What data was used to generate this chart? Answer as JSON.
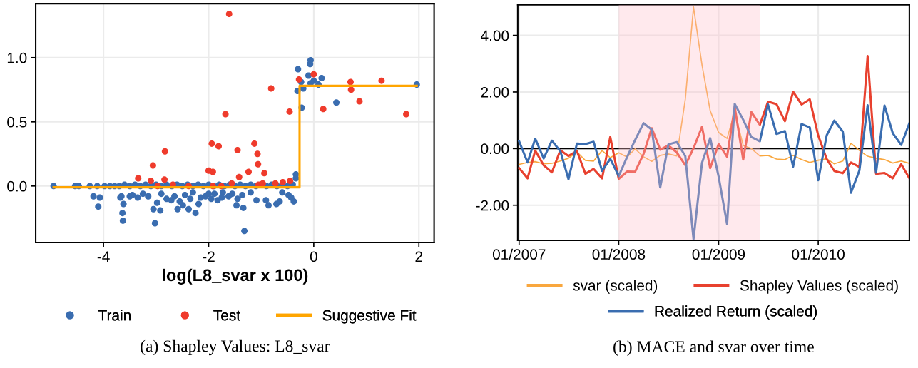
{
  "chart_data": [
    {
      "type": "scatter",
      "title": "(a) Shapley Values: L8_svar",
      "xlabel": "log(L8_svar x 100)",
      "xlim": [
        -5.29,
        2.29
      ],
      "ylim": [
        -0.44,
        1.42
      ],
      "xticks": [
        -4,
        -2,
        0,
        2
      ],
      "yticks": [
        {
          "value": 0,
          "label": "0.0"
        },
        {
          "value": 0.5,
          "label": "0.5"
        },
        {
          "value": 1,
          "label": "1.0"
        }
      ],
      "grid": true,
      "legend": "bottom",
      "series": [
        {
          "name": "Train",
          "color": "#3a6db0",
          "marker": "circle",
          "x": [
            -0.06,
            -0.07,
            -0.3,
            -0.1,
            0.15,
            -0.24,
            0.09,
            -0.31,
            -0.2,
            -0.06,
            0.0,
            0.43,
            -0.23,
            1.96,
            -0.34,
            -0.34,
            -4.95,
            -4.54,
            -4.47,
            -4.26,
            -4.12,
            -3.98,
            -3.88,
            -3.79,
            -3.7,
            -3.6,
            -3.5,
            -3.4,
            -3.3,
            -3.2,
            -3.1,
            -3.0,
            -2.9,
            -2.8,
            -2.7,
            -2.6,
            -2.5,
            -2.4,
            -2.3,
            -2.2,
            -2.1,
            -2.0,
            -1.9,
            -1.8,
            -1.7,
            -1.6,
            -1.5,
            -1.4,
            -1.3,
            -1.2,
            -1.1,
            -0.9,
            -0.8,
            -0.7,
            -0.6,
            -0.5,
            -0.4,
            -4.19,
            -4.07,
            -4.1,
            -3.66,
            -3.68,
            -3.62,
            -3.64,
            -3.63,
            -3.5,
            -3.05,
            -2.92,
            -3.02,
            -2.98,
            -2.71,
            -2.59,
            -2.38,
            -2.25,
            -2.19,
            -2.49,
            -1.32,
            -1.47,
            -1.34,
            -1.36,
            -1.09,
            -0.91,
            -0.86,
            -0.71,
            -0.65,
            -0.48,
            -0.43,
            -0.38,
            -1.83,
            -1.62,
            -2.06,
            -1.89,
            -1.73,
            -3.45,
            -3.35,
            -3.25,
            -3.15,
            -2.9,
            -2.8,
            -2.65,
            -2.55,
            -2.45,
            -2.35,
            -2.3,
            -2.15,
            -2.0,
            -1.95,
            -1.75,
            -1.55,
            -1.45,
            -1.2,
            -0.6
          ],
          "values": [
            0.98,
            0.95,
            0.91,
            0.86,
            0.84,
            0.81,
            0.79,
            0.74,
            0.76,
            0.8,
            0.82,
            0.65,
            0.61,
            0.79,
            0.09,
            0.06,
            0.0,
            0.0,
            0.0,
            0.0,
            0.0,
            0.0,
            0.0,
            0.0,
            0.0,
            0.01,
            0.0,
            0.01,
            0.0,
            0.01,
            0.0,
            0.01,
            0.0,
            0.01,
            0.0,
            0.01,
            0.0,
            0.01,
            0.0,
            0.01,
            0.0,
            0.01,
            0.0,
            0.01,
            0.0,
            0.01,
            0.0,
            0.01,
            0.0,
            0.01,
            0.0,
            0.0,
            0.01,
            0.0,
            0.01,
            0.0,
            0.01,
            -0.08,
            -0.09,
            -0.16,
            -0.08,
            -0.09,
            -0.14,
            -0.21,
            -0.27,
            -0.08,
            -0.18,
            -0.19,
            -0.29,
            -0.13,
            -0.11,
            -0.18,
            -0.18,
            -0.21,
            -0.14,
            -0.15,
            -0.35,
            -0.15,
            -0.17,
            -0.07,
            -0.11,
            -0.11,
            -0.15,
            -0.14,
            -0.12,
            -0.07,
            -0.09,
            -0.12,
            -0.11,
            -0.08,
            -0.08,
            -0.06,
            -0.05,
            -0.07,
            -0.09,
            -0.06,
            -0.08,
            -0.06,
            -0.1,
            -0.08,
            -0.12,
            -0.07,
            -0.1,
            -0.05,
            -0.09,
            -0.06,
            -0.1,
            -0.09,
            -0.06,
            -0.1,
            -0.05,
            -0.05
          ]
        },
        {
          "name": "Test",
          "color": "#ef3b2c",
          "marker": "circle",
          "x": [
            -1.61,
            0.0,
            -0.28,
            -0.81,
            0.7,
            0.71,
            1.29,
            0.87,
            0.18,
            -0.46,
            1.76,
            -1.68,
            -1.94,
            -1.81,
            -1.13,
            -1.45,
            -1.07,
            -2.83,
            -3.06,
            -1.06,
            -2.0,
            -1.92,
            -1.24,
            -0.94,
            -1.42,
            -3.34,
            -3.1,
            -2.84,
            -0.45,
            -2.97,
            -2.38,
            -2.68,
            -1.92,
            -1.56,
            -1.05,
            -0.97,
            -0.73,
            -0.59,
            -1.76
          ],
          "values": [
            1.34,
            0.87,
            0.83,
            0.76,
            0.81,
            0.75,
            0.82,
            0.66,
            0.6,
            0.58,
            0.56,
            0.56,
            0.33,
            0.31,
            0.33,
            0.28,
            0.25,
            0.27,
            0.16,
            0.17,
            0.12,
            0.11,
            0.11,
            0.1,
            0.07,
            0.06,
            0.04,
            0.05,
            0.04,
            0.0,
            0.0,
            0.01,
            0.0,
            0.02,
            0.01,
            0.02,
            0.02,
            0.03,
            0.0
          ]
        },
        {
          "name": "Suggestive Fit",
          "type": "line",
          "color": "#ffa500",
          "x": [
            -4.95,
            -0.27,
            -0.27,
            1.96
          ],
          "values": [
            -0.01,
            -0.01,
            0.78,
            0.78
          ]
        }
      ]
    },
    {
      "type": "line",
      "title": "(b) MACE and svar over time",
      "xlim": [
        "2006-12-27",
        "2010-12-01"
      ],
      "ylim": [
        -3.24,
        5.08
      ],
      "xticks": [
        {
          "value": "2007-01-01",
          "label": "01/2007"
        },
        {
          "value": "2008-01-01",
          "label": "01/2008"
        },
        {
          "value": "2009-01-01",
          "label": "01/2009"
        },
        {
          "value": "2010-01-01",
          "label": "01/2010"
        }
      ],
      "yticks": [
        {
          "value": -2,
          "label": "-2.00"
        },
        {
          "value": 0,
          "label": "0.00"
        },
        {
          "value": 2,
          "label": "2.00"
        },
        {
          "value": 4,
          "label": "4.00"
        }
      ],
      "grid": true,
      "legend": "bottom",
      "x": [
        "2007-01",
        "2007-02",
        "2007-03",
        "2007-04",
        "2007-05",
        "2007-06",
        "2007-07",
        "2007-08",
        "2007-09",
        "2007-10",
        "2007-11",
        "2007-12",
        "2008-01",
        "2008-02",
        "2008-03",
        "2008-04",
        "2008-05",
        "2008-06",
        "2008-07",
        "2008-08",
        "2008-09",
        "2008-10",
        "2008-11",
        "2008-12",
        "2009-01",
        "2009-02",
        "2009-03",
        "2009-04",
        "2009-05",
        "2009-06",
        "2009-07",
        "2009-08",
        "2009-09",
        "2009-10",
        "2009-11",
        "2009-12",
        "2010-01",
        "2010-02",
        "2010-03",
        "2010-04",
        "2010-05",
        "2010-06",
        "2010-07",
        "2010-08",
        "2010-09",
        "2010-10",
        "2010-11",
        "2010-12"
      ],
      "ref_lines": [
        {
          "axis": "y",
          "value": 0,
          "color": "#000000"
        }
      ],
      "bands": [
        {
          "axis": "x",
          "from": "2008-01-01",
          "to": "2009-06-01",
          "color": "#ffc0cb"
        }
      ],
      "series": [
        {
          "name": "svar (scaled)",
          "color": "#f9a73e",
          "values": [
            -0.56,
            -0.49,
            -0.46,
            -0.54,
            -0.52,
            -0.44,
            -0.34,
            -0.12,
            -0.42,
            -0.44,
            -0.07,
            -0.32,
            -0.15,
            -0.3,
            -0.01,
            -0.29,
            -0.45,
            -0.24,
            -0.19,
            -0.26,
            1.75,
            5.0,
            2.96,
            1.34,
            0.57,
            0.36,
            1.3,
            0.11,
            0.0,
            -0.26,
            -0.24,
            -0.37,
            -0.39,
            -0.24,
            -0.39,
            -0.49,
            -0.41,
            -0.36,
            -0.54,
            -0.44,
            0.19,
            -0.07,
            -0.27,
            -0.34,
            -0.39,
            -0.51,
            -0.44,
            -0.52
          ]
        },
        {
          "name": "Shapley Values (scaled)",
          "color": "#e8412f",
          "values": [
            -0.69,
            -1.05,
            -0.07,
            -0.59,
            -0.84,
            -0.06,
            -0.26,
            -0.09,
            -0.89,
            -0.72,
            -1.05,
            0.41,
            -1.07,
            -0.81,
            -0.82,
            -0.19,
            0.72,
            -0.04,
            0.11,
            -0.14,
            -0.59,
            0.01,
            0.77,
            -0.69,
            0.16,
            -0.29,
            1.47,
            -0.39,
            1.29,
            0.84,
            1.66,
            1.57,
            0.97,
            2.01,
            1.56,
            1.74,
            0.46,
            -0.37,
            -0.79,
            -0.87,
            -0.49,
            -0.65,
            3.27,
            -0.89,
            -0.86,
            -1.05,
            -0.55,
            -1.05
          ]
        },
        {
          "name": "Realized Return (scaled)",
          "color": "#3a6db0",
          "values": [
            0.26,
            -0.49,
            0.35,
            -0.35,
            0.28,
            -0.09,
            -1.08,
            0.18,
            0.16,
            0.24,
            -0.79,
            -0.36,
            -0.97,
            -0.29,
            0.3,
            0.9,
            0.67,
            -1.37,
            0.15,
            0.23,
            -0.27,
            -3.2,
            -0.51,
            0.37,
            -0.99,
            -2.67,
            1.58,
            1.02,
            0.41,
            0.26,
            1.56,
            0.52,
            0.62,
            -0.64,
            0.87,
            0.75,
            -1.12,
            0.47,
            0.99,
            0.6,
            -1.56,
            -0.77,
            1.53,
            -0.85,
            1.52,
            0.55,
            0.13,
            0.9
          ]
        }
      ]
    }
  ]
}
